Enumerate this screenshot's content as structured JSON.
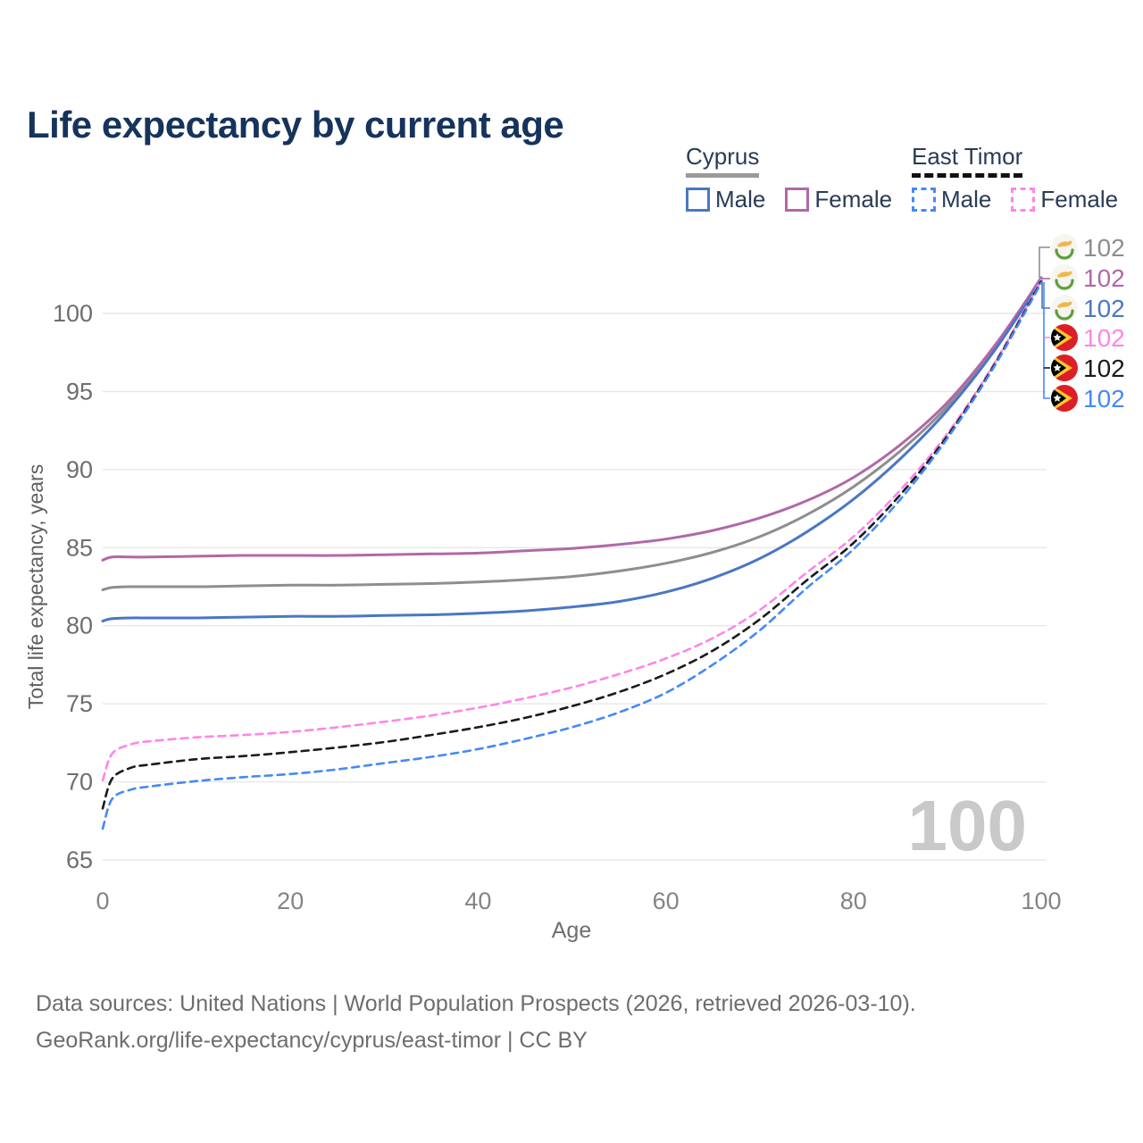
{
  "title": "Life expectancy by current age",
  "legend": {
    "groups": [
      {
        "name": "Cyprus",
        "line_style": "solid",
        "underline_color": "#9a9a9a",
        "items": [
          {
            "label": "Male",
            "color": "#4a77c4"
          },
          {
            "label": "Female",
            "color": "#b168a8"
          }
        ]
      },
      {
        "name": "East Timor",
        "line_style": "dashed",
        "underline_color": "#111111",
        "items": [
          {
            "label": "Male",
            "color": "#4489f8"
          },
          {
            "label": "Female",
            "color": "#ff85e6"
          }
        ]
      }
    ]
  },
  "watermark": "100",
  "footer": {
    "line1": "Data sources: United Nations | World Population Prospects (2026, retrieved 2026-03-10).",
    "line2": "GeoRank.org/life-expectancy/cyprus/east-timor | CC BY"
  },
  "chart_data": {
    "type": "line",
    "title": "Life expectancy by current age",
    "xlabel": "Age",
    "ylabel": "Total life expectancy, years",
    "x_ticks": [
      0,
      20,
      40,
      60,
      80,
      100
    ],
    "y_ticks": [
      65,
      70,
      75,
      80,
      85,
      90,
      95,
      100
    ],
    "xlim": [
      0,
      100
    ],
    "ylim": [
      65,
      103.5
    ],
    "grid": "horizontal",
    "legend_position": "top-right",
    "ages": [
      0,
      1,
      3,
      5,
      10,
      15,
      20,
      25,
      30,
      35,
      40,
      45,
      50,
      55,
      60,
      65,
      70,
      75,
      80,
      85,
      90,
      95,
      100
    ],
    "series": [
      {
        "id": "cyprus-both",
        "name": "Cyprus Both sexes",
        "country": "Cyprus",
        "sex": "both",
        "color": "#8e8e8e",
        "dash": "solid",
        "end_label": "102",
        "end_row": 0,
        "values": [
          82.3,
          82.45,
          82.5,
          82.5,
          82.5,
          82.55,
          82.6,
          82.6,
          82.65,
          82.7,
          82.8,
          82.95,
          83.15,
          83.5,
          84.0,
          84.7,
          85.7,
          87.1,
          88.9,
          91.2,
          94.05,
          97.75,
          102.3
        ]
      },
      {
        "id": "cyprus-female",
        "name": "Cyprus Female",
        "country": "Cyprus",
        "sex": "female",
        "color": "#b168a8",
        "dash": "solid",
        "end_label": "102",
        "end_row": 1,
        "values": [
          84.2,
          84.4,
          84.4,
          84.4,
          84.45,
          84.5,
          84.5,
          84.5,
          84.55,
          84.6,
          84.65,
          84.8,
          84.95,
          85.2,
          85.55,
          86.1,
          86.9,
          88.0,
          89.5,
          91.6,
          94.3,
          97.9,
          102.25
        ]
      },
      {
        "id": "cyprus-male",
        "name": "Cyprus Male",
        "country": "Cyprus",
        "sex": "male",
        "color": "#4a77c4",
        "dash": "solid",
        "end_label": "102",
        "end_row": 2,
        "values": [
          80.3,
          80.45,
          80.5,
          80.5,
          80.5,
          80.55,
          80.6,
          80.6,
          80.65,
          80.7,
          80.8,
          80.95,
          81.2,
          81.55,
          82.15,
          83.05,
          84.3,
          86.0,
          88.1,
          90.7,
          93.8,
          97.6,
          102.1
        ]
      },
      {
        "id": "easttimor-female",
        "name": "East Timor Female",
        "country": "East Timor",
        "sex": "female",
        "color": "#ff85e6",
        "dash": "dashed",
        "end_label": "102",
        "end_row": 3,
        "values": [
          70.1,
          71.8,
          72.4,
          72.6,
          72.85,
          73.0,
          73.2,
          73.5,
          73.85,
          74.25,
          74.75,
          75.35,
          76.05,
          76.9,
          77.9,
          79.2,
          81.0,
          83.4,
          85.7,
          88.7,
          92.3,
          96.8,
          102.15
        ]
      },
      {
        "id": "easttimor-both",
        "name": "East Timor Both sexes",
        "country": "East Timor",
        "sex": "both",
        "color": "#1a1a1a",
        "dash": "dashed",
        "end_label": "102",
        "end_row": 4,
        "values": [
          68.3,
          70.2,
          70.9,
          71.1,
          71.45,
          71.65,
          71.9,
          72.2,
          72.55,
          73.0,
          73.5,
          74.1,
          74.85,
          75.75,
          76.9,
          78.4,
          80.4,
          82.9,
          85.3,
          88.4,
          92.15,
          96.7,
          102.05
        ]
      },
      {
        "id": "easttimor-male",
        "name": "East Timor Male",
        "country": "East Timor",
        "sex": "male",
        "color": "#4489f8",
        "dash": "dashed",
        "end_label": "102",
        "end_row": 5,
        "values": [
          67.0,
          68.9,
          69.5,
          69.7,
          70.05,
          70.3,
          70.5,
          70.8,
          71.2,
          71.6,
          72.1,
          72.75,
          73.5,
          74.45,
          75.7,
          77.5,
          79.7,
          82.4,
          84.9,
          88.1,
          92.0,
          96.6,
          101.95
        ]
      }
    ]
  }
}
